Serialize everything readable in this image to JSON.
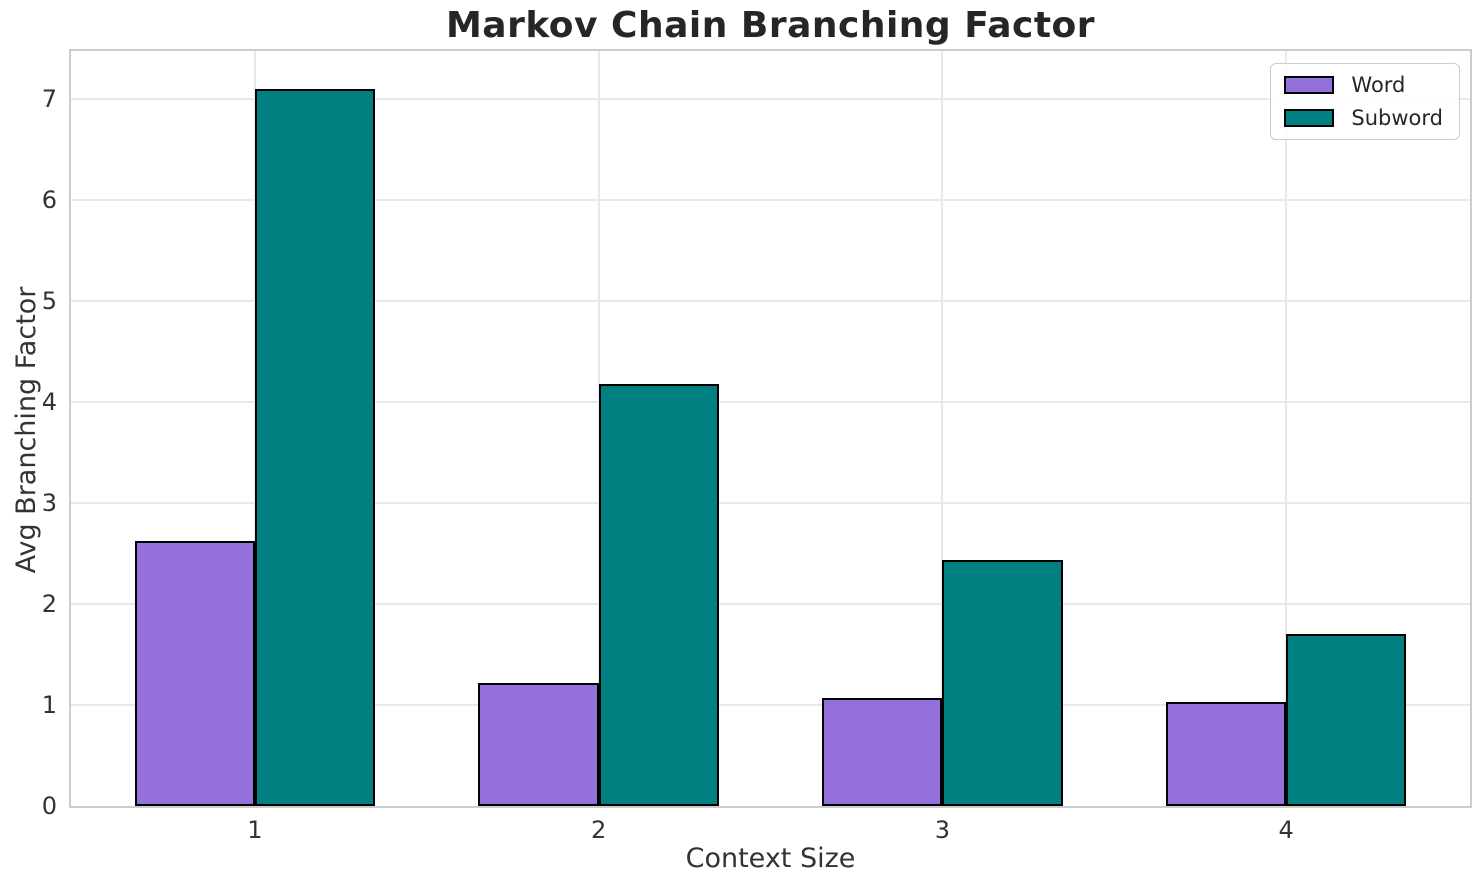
{
  "chart_data": {
    "type": "bar",
    "title": "Markov Chain Branching Factor",
    "xlabel": "Context Size",
    "ylabel": "Avg Branching Factor",
    "categories": [
      "1",
      "2",
      "3",
      "4"
    ],
    "series": [
      {
        "name": "Word",
        "color": "#9370DB",
        "values": [
          2.63,
          1.22,
          1.07,
          1.03
        ]
      },
      {
        "name": "Subword",
        "color": "#008080",
        "values": [
          7.1,
          4.18,
          2.44,
          1.7
        ]
      }
    ],
    "ylim": [
      0,
      7.48
    ],
    "yticks": [
      "0",
      "1",
      "2",
      "3",
      "4",
      "5",
      "6",
      "7"
    ],
    "xlim": [
      0.465,
      4.535
    ],
    "bar_width": 0.35,
    "bar_edge_color": "#000000",
    "grid": true,
    "grid_color": "#e9e9e9",
    "spine_color": "#cccccc",
    "legend_position": "upper right",
    "legend_entries": [
      "Word",
      "Subword"
    ]
  }
}
